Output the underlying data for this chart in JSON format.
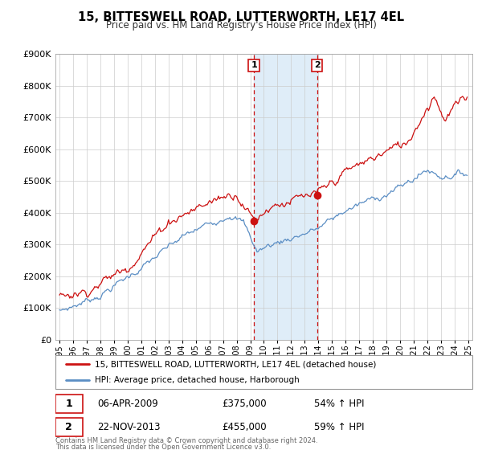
{
  "title": "15, BITTESWELL ROAD, LUTTERWORTH, LE17 4EL",
  "subtitle": "Price paid vs. HM Land Registry's House Price Index (HPI)",
  "legend_line1": "15, BITTESWELL ROAD, LUTTERWORTH, LE17 4EL (detached house)",
  "legend_line2": "HPI: Average price, detached house, Harborough",
  "annotation1_date": "06-APR-2009",
  "annotation1_price": "£375,000",
  "annotation1_hpi": "54% ↑ HPI",
  "annotation2_date": "22-NOV-2013",
  "annotation2_price": "£455,000",
  "annotation2_hpi": "59% ↑ HPI",
  "footer1": "Contains HM Land Registry data © Crown copyright and database right 2024.",
  "footer2": "This data is licensed under the Open Government Licence v3.0.",
  "hpi_color": "#5b8ec4",
  "price_color": "#cc1111",
  "shading_color": "#daeaf7",
  "annotation_box_color": "#cc1111",
  "ylim": [
    0,
    900000
  ],
  "yticks": [
    0,
    100000,
    200000,
    300000,
    400000,
    500000,
    600000,
    700000,
    800000,
    900000
  ],
  "xmin": 1994.7,
  "xmax": 2025.3,
  "transaction1_x": 2009.27,
  "transaction1_y": 375000,
  "transaction2_x": 2013.9,
  "transaction2_y": 455000
}
